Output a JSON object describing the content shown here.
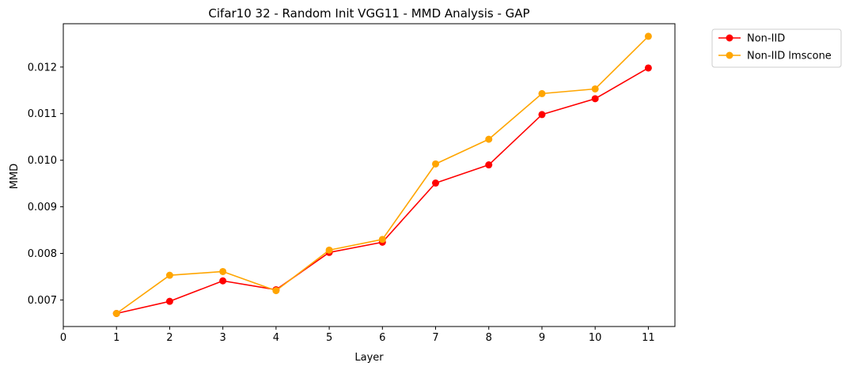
{
  "chart_data": {
    "type": "line",
    "title": "Cifar10 32 - Random Init VGG11 - MMD Analysis - GAP",
    "xlabel": "Layer",
    "ylabel": "MMD",
    "x": [
      1,
      2,
      3,
      4,
      5,
      6,
      7,
      8,
      9,
      10,
      11
    ],
    "xticks": [
      "0",
      "1",
      "2",
      "3",
      "4",
      "5",
      "6",
      "7",
      "8",
      "9",
      "10",
      "11"
    ],
    "yticks": [
      "0.007",
      "0.008",
      "0.009",
      "0.010",
      "0.011",
      "0.012"
    ],
    "xlim": [
      0,
      11.5
    ],
    "ylim": [
      0.00643,
      0.01293
    ],
    "grid": false,
    "legend_position": "outside top-right",
    "series": [
      {
        "name": "Non-IID",
        "color": "#ff0000",
        "values": [
          0.00671,
          0.00697,
          0.00741,
          0.00722,
          0.00802,
          0.00824,
          0.00951,
          0.0099,
          0.01098,
          0.01132,
          0.01198
        ]
      },
      {
        "name": "Non-IID lmscone",
        "color": "#ffa500",
        "values": [
          0.00671,
          0.00753,
          0.00761,
          0.0072,
          0.00807,
          0.0083,
          0.00992,
          0.01045,
          0.01143,
          0.01153,
          0.01266
        ]
      }
    ]
  }
}
